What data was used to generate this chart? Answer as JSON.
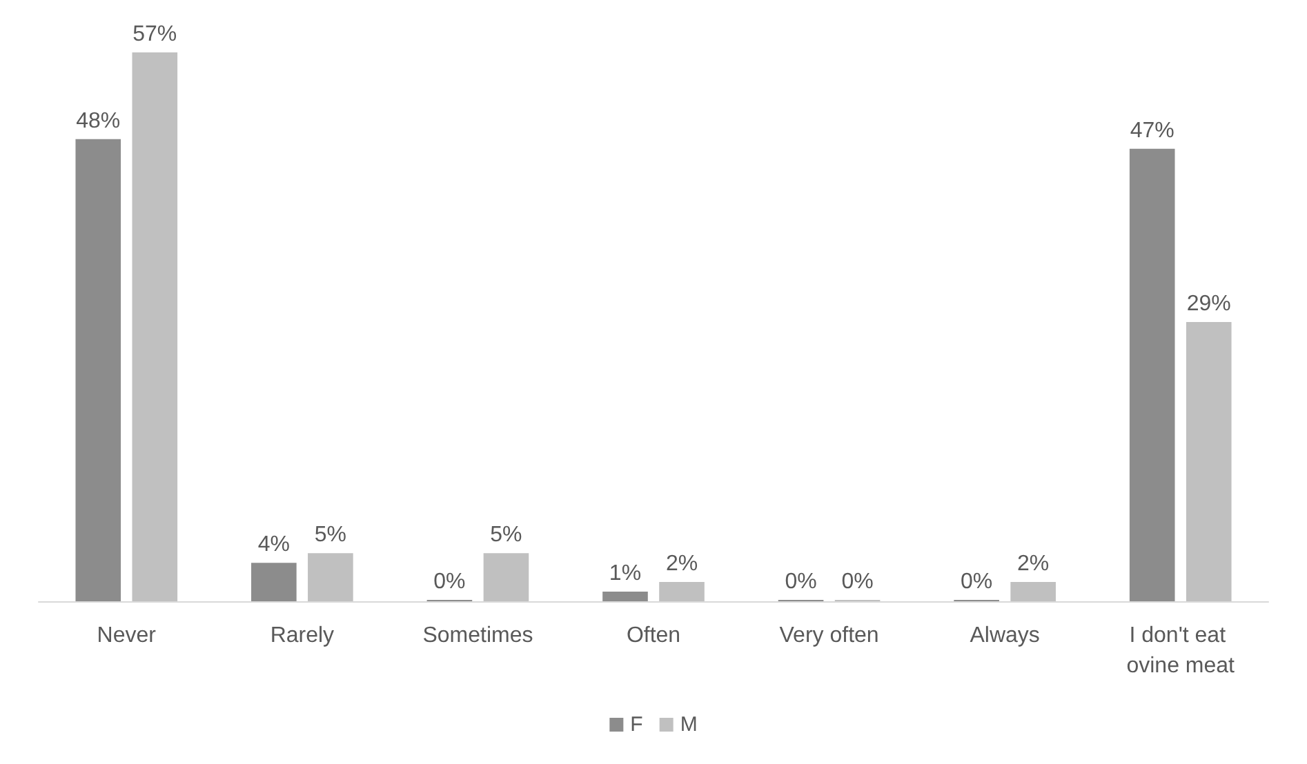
{
  "chart_data": {
    "type": "bar",
    "categories": [
      "Never",
      "Rarely",
      "Sometimes",
      "Often",
      "Very often",
      "Always",
      "I don't eat ovine meat"
    ],
    "series": [
      {
        "name": "F",
        "color": "#8c8c8c",
        "values": [
          48,
          4,
          0,
          1,
          0,
          0,
          47
        ],
        "value_labels": [
          "48%",
          "4%",
          "0%",
          "1%",
          "0%",
          "0%",
          "47%"
        ]
      },
      {
        "name": "M",
        "color": "#c0c0c0",
        "values": [
          57,
          5,
          5,
          2,
          0,
          2,
          29
        ],
        "value_labels": [
          "57%",
          "5%",
          "5%",
          "2%",
          "0%",
          "2%",
          "29%"
        ]
      }
    ],
    "legend": "bottom",
    "grid": false
  }
}
